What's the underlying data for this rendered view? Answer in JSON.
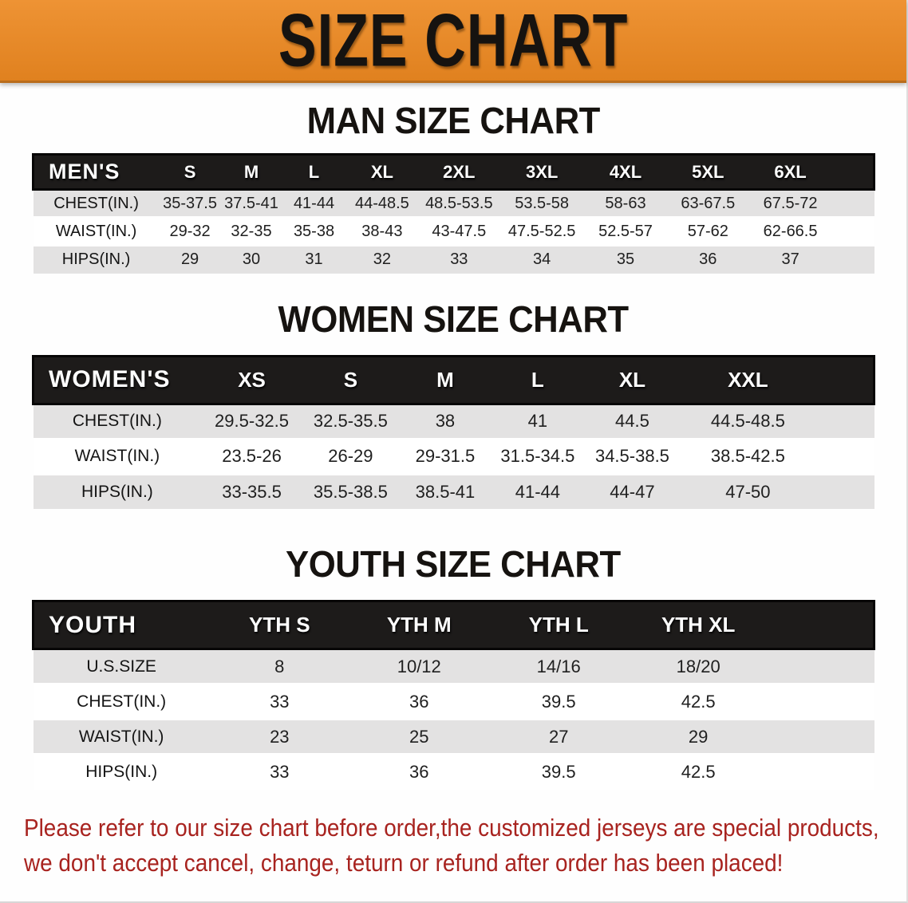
{
  "banner": {
    "title": "SIZE CHART"
  },
  "colors": {
    "banner_orange": "#e6892d",
    "header_bar_black": "#1d1b1a",
    "row_stripe_gray": "#e3e2e2",
    "disclaimer_red": "#a8231f"
  },
  "sections": [
    {
      "title": "MAN SIZE CHART",
      "header_label": "MEN'S",
      "columns": [
        "S",
        "M",
        "L",
        "XL",
        "2XL",
        "3XL",
        "4XL",
        "5XL",
        "6XL"
      ],
      "rows": [
        {
          "label": "CHEST(IN.)",
          "values": [
            "35-37.5",
            "37.5-41",
            "41-44",
            "44-48.5",
            "48.5-53.5",
            "53.5-58",
            "58-63",
            "63-67.5",
            "67.5-72"
          ]
        },
        {
          "label": "WAIST(IN.)",
          "values": [
            "29-32",
            "32-35",
            "35-38",
            "38-43",
            "43-47.5",
            "47.5-52.5",
            "52.5-57",
            "57-62",
            "62-66.5"
          ]
        },
        {
          "label": "HIPS(IN.)",
          "values": [
            "29",
            "30",
            "31",
            "32",
            "33",
            "34",
            "35",
            "36",
            "37"
          ]
        }
      ]
    },
    {
      "title": "WOMEN SIZE CHART",
      "header_label": "WOMEN'S",
      "columns": [
        "XS",
        "S",
        "M",
        "L",
        "XL",
        "XXL"
      ],
      "rows": [
        {
          "label": "CHEST(IN.)",
          "values": [
            "29.5-32.5",
            "32.5-35.5",
            "38",
            "41",
            "44.5",
            "44.5-48.5"
          ]
        },
        {
          "label": "WAIST(IN.)",
          "values": [
            "23.5-26",
            "26-29",
            "29-31.5",
            "31.5-34.5",
            "34.5-38.5",
            "38.5-42.5"
          ]
        },
        {
          "label": "HIPS(IN.)",
          "values": [
            "33-35.5",
            "35.5-38.5",
            "38.5-41",
            "41-44",
            "44-47",
            "47-50"
          ]
        }
      ]
    },
    {
      "title": "YOUTH SIZE CHART",
      "header_label": "YOUTH",
      "columns": [
        "YTH S",
        "YTH M",
        "YTH L",
        "YTH XL"
      ],
      "rows": [
        {
          "label": "U.S.SIZE",
          "values": [
            "8",
            "10/12",
            "14/16",
            "18/20"
          ]
        },
        {
          "label": "CHEST(IN.)",
          "values": [
            "33",
            "36",
            "39.5",
            "42.5"
          ]
        },
        {
          "label": "WAIST(IN.)",
          "values": [
            "23",
            "25",
            "27",
            "29"
          ]
        },
        {
          "label": "HIPS(IN.)",
          "values": [
            "33",
            "36",
            "39.5",
            "42.5"
          ]
        }
      ]
    }
  ],
  "disclaimer": {
    "line1": "Please refer to our size chart before order,the customized jerseys are special products,",
    "line2": "we don't accept cancel, change, teturn or refund after order has been placed!"
  }
}
